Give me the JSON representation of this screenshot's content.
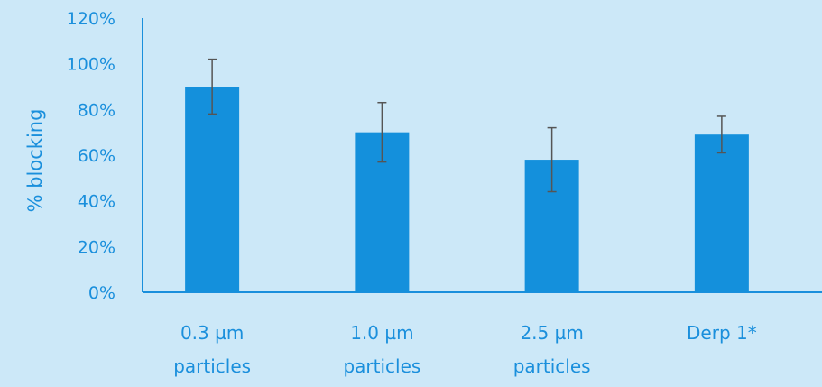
{
  "chart_data": {
    "type": "bar",
    "title": "",
    "xlabel": "",
    "ylabel": "% blocking",
    "ylim": [
      0,
      120
    ],
    "y_ticks": [
      "0%",
      "20%",
      "40%",
      "60%",
      "80%",
      "100%",
      "120%"
    ],
    "y_tick_values": [
      0,
      20,
      40,
      60,
      80,
      100,
      120
    ],
    "categories": [
      [
        "0.3 µm",
        "particles"
      ],
      [
        "1.0 µm",
        "particles"
      ],
      [
        "2.5 µm",
        "particles"
      ],
      [
        "Derp 1*"
      ]
    ],
    "values": [
      90,
      70,
      58,
      69
    ],
    "error_low": [
      78,
      57,
      44,
      61
    ],
    "error_high": [
      102,
      83,
      72,
      77
    ],
    "grid": false,
    "legend": "none",
    "colors": {
      "background": "#cce8f8",
      "bar": "#1490dc",
      "axis": "#1a8fdc",
      "text": "#1a8fdc",
      "error_bar": "#555555"
    }
  }
}
